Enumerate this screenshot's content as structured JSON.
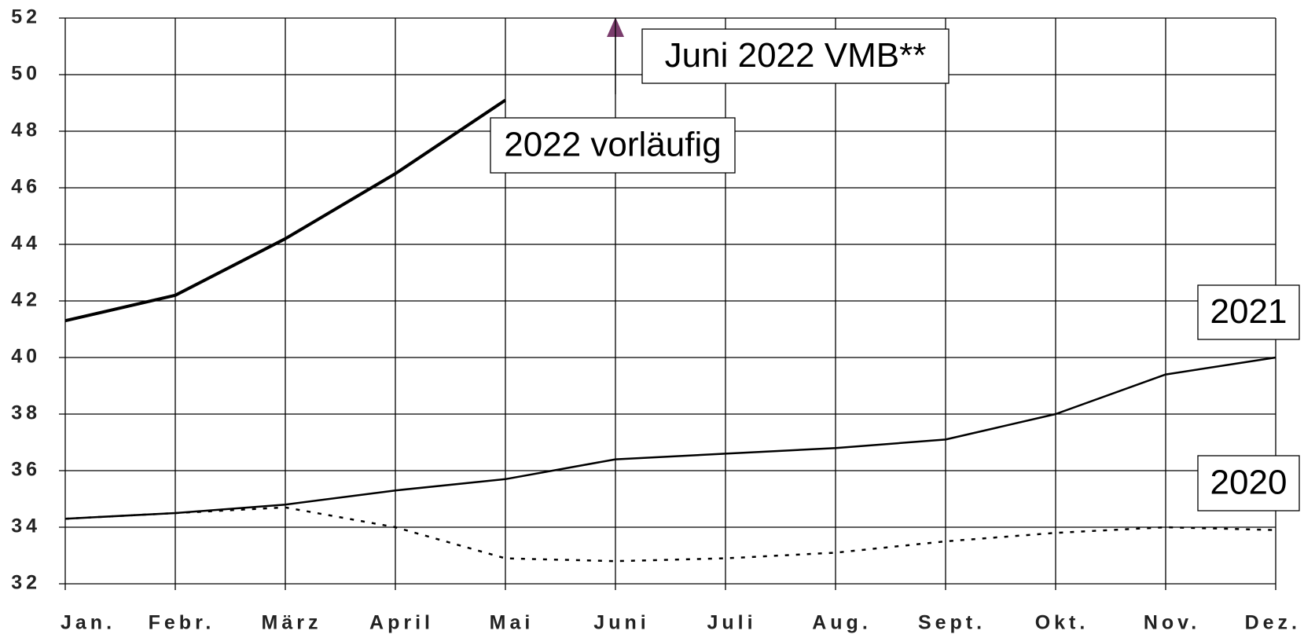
{
  "chart_data": {
    "type": "line",
    "categories": [
      "Jan.",
      "Febr.",
      "März",
      "April",
      "Mai",
      "Juni",
      "Juli",
      "Aug.",
      "Sept.",
      "Okt.",
      "Nov.",
      "Dez."
    ],
    "series": [
      {
        "name": "2020",
        "color": "#000000",
        "style": "dotted",
        "values": [
          34.3,
          34.5,
          34.7,
          34.0,
          32.9,
          32.8,
          32.9,
          33.1,
          33.5,
          33.8,
          34.0,
          33.9
        ]
      },
      {
        "name": "2021",
        "color": "#000000",
        "style": "solid",
        "values": [
          34.3,
          34.5,
          34.8,
          35.3,
          35.7,
          36.4,
          36.6,
          36.8,
          37.1,
          38.0,
          39.4,
          40.0
        ]
      },
      {
        "name": "2022 vorläufig",
        "color": "#000000",
        "style": "bold",
        "values": [
          41.3,
          42.2,
          44.2,
          46.5,
          49.1,
          null,
          null,
          null,
          null,
          null,
          null,
          null
        ]
      }
    ],
    "annotations": [
      {
        "text": "Juni 2022 VMB**"
      }
    ],
    "ylim": [
      32,
      52
    ],
    "yticks": [
      32,
      34,
      36,
      38,
      40,
      42,
      44,
      46,
      48,
      50,
      52
    ],
    "grid": true
  }
}
